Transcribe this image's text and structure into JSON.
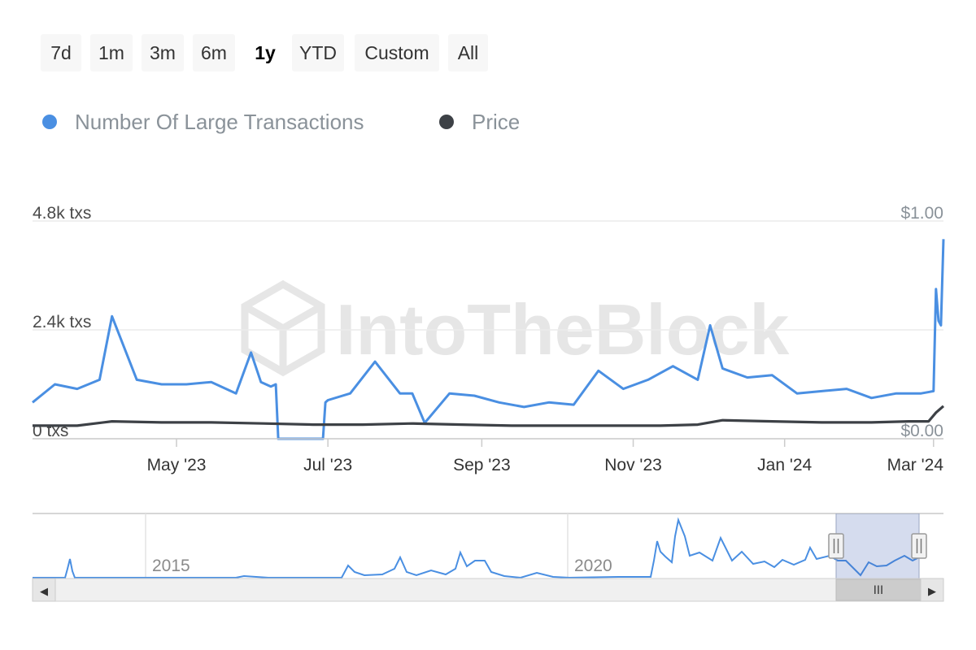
{
  "range_selector": {
    "buttons": [
      {
        "label": "7d",
        "active": false
      },
      {
        "label": "1m",
        "active": false
      },
      {
        "label": "3m",
        "active": false
      },
      {
        "label": "6m",
        "active": false
      },
      {
        "label": "1y",
        "active": true
      },
      {
        "label": "YTD",
        "active": false
      },
      {
        "label": "Custom",
        "active": false
      },
      {
        "label": "All",
        "active": false
      }
    ]
  },
  "legend": {
    "items": [
      {
        "label": "Number Of Large Transactions",
        "color": "#4a8fe2"
      },
      {
        "label": "Price",
        "color": "#3d4146"
      }
    ]
  },
  "watermark": {
    "text": "IntoTheBlock"
  },
  "chart_data": {
    "type": "line",
    "x_ticks": [
      "May '23",
      "Jul '23",
      "Sep '23",
      "Nov '23",
      "Jan '24",
      "Mar '24"
    ],
    "y_left_ticks": [
      "4.8k txs",
      "2.4k txs",
      "0 txs"
    ],
    "y_right_ticks": [
      "$1.00",
      "$0.00"
    ],
    "y_left_range": [
      0,
      4800
    ],
    "y_right_range": [
      0,
      1.0
    ],
    "grid": true,
    "legend_position": "top-left",
    "series": [
      {
        "name": "Number Of Large Transactions",
        "color": "#4a8fe2",
        "axis": "left",
        "x": [
          "2023-03-04",
          "2023-03-13",
          "2023-03-22",
          "2023-03-31",
          "2023-04-05",
          "2023-04-15",
          "2023-04-25",
          "2023-05-05",
          "2023-05-15",
          "2023-05-25",
          "2023-05-31",
          "2023-06-04",
          "2023-06-08",
          "2023-06-10",
          "2023-06-11",
          "2023-06-29",
          "2023-06-30",
          "2023-07-01",
          "2023-07-10",
          "2023-07-20",
          "2023-07-30",
          "2023-08-04",
          "2023-08-09",
          "2023-08-19",
          "2023-08-29",
          "2023-09-08",
          "2023-09-18",
          "2023-09-28",
          "2023-10-08",
          "2023-10-18",
          "2023-10-28",
          "2023-11-07",
          "2023-11-17",
          "2023-11-27",
          "2023-12-02",
          "2023-12-07",
          "2023-12-17",
          "2023-12-27",
          "2024-01-06",
          "2024-01-16",
          "2024-01-26",
          "2024-02-05",
          "2024-02-15",
          "2024-02-20",
          "2024-02-25",
          "2024-03-01",
          "2024-03-02",
          "2024-03-03",
          "2024-03-04",
          "2024-03-05"
        ],
        "values": [
          800,
          1200,
          1100,
          1300,
          2700,
          1300,
          1200,
          1200,
          1250,
          1000,
          1900,
          1250,
          1150,
          1200,
          0,
          0,
          800,
          850,
          1000,
          1700,
          1000,
          1000,
          350,
          1000,
          950,
          800,
          700,
          800,
          750,
          1500,
          1100,
          1300,
          1600,
          1300,
          2500,
          1550,
          1350,
          1400,
          1000,
          1050,
          1100,
          900,
          1000,
          1000,
          1000,
          1050,
          3300,
          2600,
          2500,
          4400
        ]
      },
      {
        "name": "Price",
        "color": "#3d4146",
        "axis": "right",
        "x": [
          "2023-03-04",
          "2023-03-22",
          "2023-04-05",
          "2023-04-25",
          "2023-05-15",
          "2023-06-05",
          "2023-06-25",
          "2023-07-15",
          "2023-08-04",
          "2023-08-24",
          "2023-09-13",
          "2023-10-03",
          "2023-10-23",
          "2023-11-12",
          "2023-11-27",
          "2023-12-07",
          "2023-12-27",
          "2024-01-16",
          "2024-02-05",
          "2024-02-20",
          "2024-02-28",
          "2024-03-02",
          "2024-03-05"
        ],
        "values": [
          0.06,
          0.06,
          0.08,
          0.075,
          0.075,
          0.07,
          0.065,
          0.065,
          0.07,
          0.065,
          0.06,
          0.06,
          0.06,
          0.06,
          0.065,
          0.085,
          0.08,
          0.075,
          0.075,
          0.08,
          0.08,
          0.12,
          0.15
        ]
      }
    ]
  },
  "navigator": {
    "year_labels": [
      "2015",
      "2020"
    ],
    "selected_range": [
      "2023-03-04",
      "2024-03-05"
    ]
  },
  "scrollbar": {
    "left_arrow": "◀",
    "right_arrow": "▶",
    "grip": "III"
  }
}
